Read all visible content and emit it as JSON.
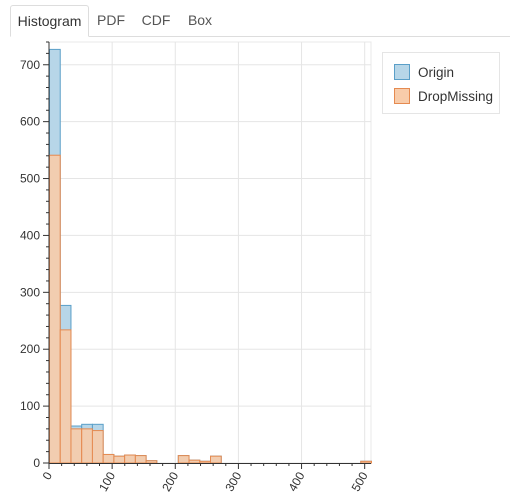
{
  "tabs": [
    {
      "label": "Histogram",
      "active": true
    },
    {
      "label": "PDF",
      "active": false
    },
    {
      "label": "CDF",
      "active": false
    },
    {
      "label": "Box",
      "active": false
    }
  ],
  "chart_data": {
    "type": "bar",
    "title": "",
    "xlabel": "",
    "ylabel": "",
    "xlim": [
      0,
      510
    ],
    "ylim": [
      0,
      740
    ],
    "x_ticks": [
      0,
      100,
      200,
      300,
      400,
      500
    ],
    "y_ticks": [
      0,
      100,
      200,
      300,
      400,
      500,
      600,
      700
    ],
    "bin_width": 17,
    "bin_starts": [
      0,
      17,
      34,
      51,
      68,
      85,
      102,
      119,
      136,
      153,
      170,
      187,
      204,
      221,
      238,
      255,
      272,
      289,
      306,
      323,
      340,
      357,
      374,
      391,
      408,
      425,
      442,
      459,
      476,
      493
    ],
    "grid": true,
    "legend_position": "top-right",
    "series": [
      {
        "name": "Origin",
        "fill": "#b7d6e8",
        "stroke": "#5a9fc8",
        "values": [
          727,
          277,
          65,
          68,
          68,
          15,
          12,
          14,
          13,
          4,
          0,
          0,
          13,
          5,
          3,
          12,
          0,
          0,
          0,
          0,
          0,
          0,
          0,
          0,
          0,
          0,
          0,
          0,
          0,
          3
        ]
      },
      {
        "name": "DropMissing",
        "fill": "#f8ccaa",
        "stroke": "#e58a50",
        "values": [
          541,
          234,
          60,
          60,
          57,
          15,
          12,
          14,
          13,
          4,
          0,
          0,
          13,
          5,
          3,
          12,
          0,
          0,
          0,
          0,
          0,
          0,
          0,
          0,
          0,
          0,
          0,
          0,
          0,
          3
        ]
      }
    ]
  }
}
